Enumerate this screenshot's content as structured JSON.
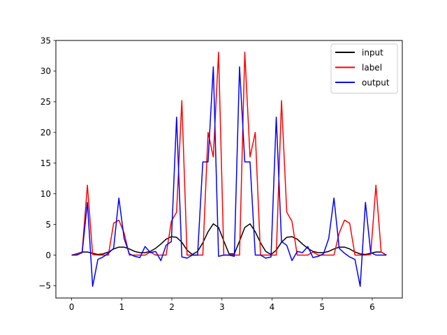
{
  "chart_data": {
    "type": "line",
    "title": "",
    "xlabel": "",
    "ylabel": "",
    "xlim": [
      -0.315,
      6.6
    ],
    "ylim": [
      -7,
      35
    ],
    "xticks": [
      0,
      1,
      2,
      3,
      4,
      5,
      6
    ],
    "yticks": [
      -5,
      0,
      5,
      10,
      15,
      20,
      25,
      30,
      35
    ],
    "xtick_labels": [
      "0",
      "1",
      "2",
      "3",
      "4",
      "5",
      "6"
    ],
    "ytick_labels": [
      "−5",
      "0",
      "5",
      "10",
      "15",
      "20",
      "25",
      "30",
      "35"
    ],
    "grid": false,
    "legend_position": "top-right",
    "x": [
      0.0,
      0.1047,
      0.2094,
      0.3142,
      0.4189,
      0.5236,
      0.6283,
      0.733,
      0.8378,
      0.9425,
      1.0472,
      1.1519,
      1.2566,
      1.3614,
      1.4661,
      1.5708,
      1.6755,
      1.7802,
      1.885,
      1.9897,
      2.0944,
      2.1991,
      2.3038,
      2.4086,
      2.5133,
      2.618,
      2.7227,
      2.8274,
      2.9322,
      3.0369,
      3.1416,
      3.2463,
      3.351,
      3.4558,
      3.5605,
      3.6652,
      3.7699,
      3.8746,
      3.9794,
      4.0841,
      4.1888,
      4.2935,
      4.3982,
      4.5029,
      4.6077,
      4.7124,
      4.8171,
      4.9218,
      5.0265,
      5.1313,
      5.236,
      5.3407,
      5.4454,
      5.5501,
      5.6549,
      5.7596,
      5.8643,
      5.969,
      6.0737,
      6.1785,
      6.2832
    ],
    "series": [
      {
        "name": "input",
        "color": "#000000",
        "values": [
          0.0,
          0.2,
          0.5,
          0.5,
          0.3,
          0.1,
          0.2,
          0.5,
          1.0,
          1.3,
          1.3,
          1.0,
          0.6,
          0.4,
          0.4,
          0.6,
          1.1,
          1.8,
          2.6,
          3.0,
          2.9,
          2.1,
          0.8,
          0.1,
          0.6,
          2.0,
          3.8,
          5.1,
          4.5,
          2.3,
          0.2,
          0.2,
          2.3,
          4.5,
          5.1,
          3.8,
          2.0,
          0.6,
          0.1,
          0.8,
          2.1,
          2.9,
          3.0,
          2.6,
          1.8,
          1.1,
          0.6,
          0.4,
          0.4,
          0.6,
          1.0,
          1.3,
          1.3,
          1.0,
          0.5,
          0.2,
          0.1,
          0.3,
          0.5,
          0.5,
          0.0
        ]
      },
      {
        "name": "label",
        "color": "#ff0000",
        "values": [
          0.0,
          0.1,
          0.5,
          11.4,
          0.1,
          0.0,
          0.0,
          0.0,
          5.2,
          5.7,
          3.6,
          0.0,
          0.0,
          0.0,
          0.0,
          0.5,
          0.0,
          0.0,
          0.0,
          5.5,
          7.0,
          25.2,
          0.0,
          0.0,
          0.0,
          0.0,
          20.0,
          16.0,
          33.1,
          0.0,
          0.0,
          0.0,
          0.0,
          33.1,
          16.0,
          20.0,
          0.0,
          0.0,
          0.0,
          0.0,
          25.2,
          7.0,
          5.5,
          0.0,
          0.0,
          0.0,
          0.5,
          0.0,
          0.0,
          0.0,
          0.0,
          3.6,
          5.7,
          5.2,
          0.0,
          0.0,
          0.0,
          0.1,
          11.4,
          0.5,
          0.0
        ]
      },
      {
        "name": "output",
        "color": "#0000ff",
        "values": [
          0.0,
          0.0,
          0.4,
          8.6,
          -5.1,
          -0.7,
          -0.3,
          0.3,
          1.1,
          9.3,
          2.7,
          0.2,
          -0.2,
          -0.4,
          1.4,
          0.4,
          0.6,
          -0.9,
          1.6,
          2.2,
          22.5,
          -0.3,
          -0.5,
          0.0,
          0.0,
          15.2,
          15.2,
          30.7,
          -0.2,
          0.0,
          0.0,
          -0.2,
          30.7,
          15.2,
          15.2,
          0.0,
          0.0,
          -0.5,
          -0.3,
          22.5,
          2.2,
          1.6,
          -0.9,
          0.6,
          0.4,
          1.4,
          -0.4,
          -0.2,
          0.2,
          2.7,
          9.3,
          1.1,
          0.3,
          -0.3,
          -0.7,
          -5.1,
          8.6,
          0.4,
          0.0,
          0.0,
          0.0
        ]
      }
    ]
  }
}
